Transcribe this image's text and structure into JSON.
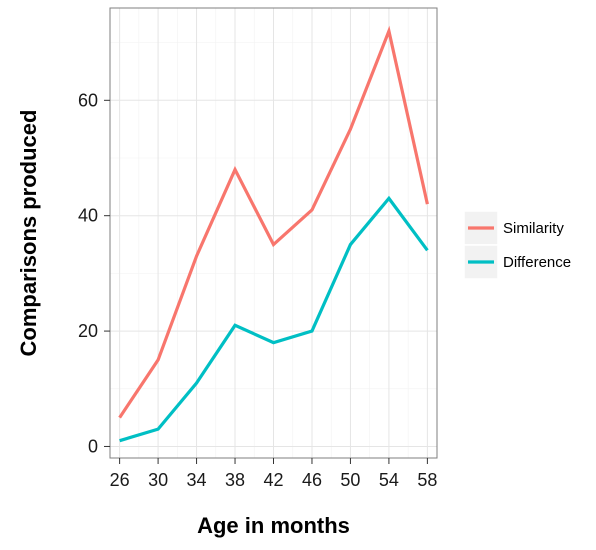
{
  "chart_data": {
    "type": "line",
    "xlabel": "Age in months",
    "ylabel": "Comparisons produced",
    "x": [
      26,
      30,
      34,
      38,
      42,
      46,
      50,
      54,
      58
    ],
    "x_ticks": [
      "26",
      "30",
      "34",
      "38",
      "42",
      "46",
      "50",
      "54",
      "58"
    ],
    "y_ticks": [
      "0",
      "20",
      "40",
      "60"
    ],
    "xlim": [
      25,
      59
    ],
    "ylim": [
      -2,
      76
    ],
    "grid": true,
    "legend_position": "right",
    "series": [
      {
        "name": "Similarity",
        "color": "#F8766D",
        "values": [
          5,
          15,
          33,
          48,
          35,
          41,
          55,
          72,
          42
        ]
      },
      {
        "name": "Difference",
        "color": "#00BFC4",
        "values": [
          1,
          3,
          11,
          21,
          18,
          20,
          35,
          43,
          34
        ]
      }
    ]
  }
}
